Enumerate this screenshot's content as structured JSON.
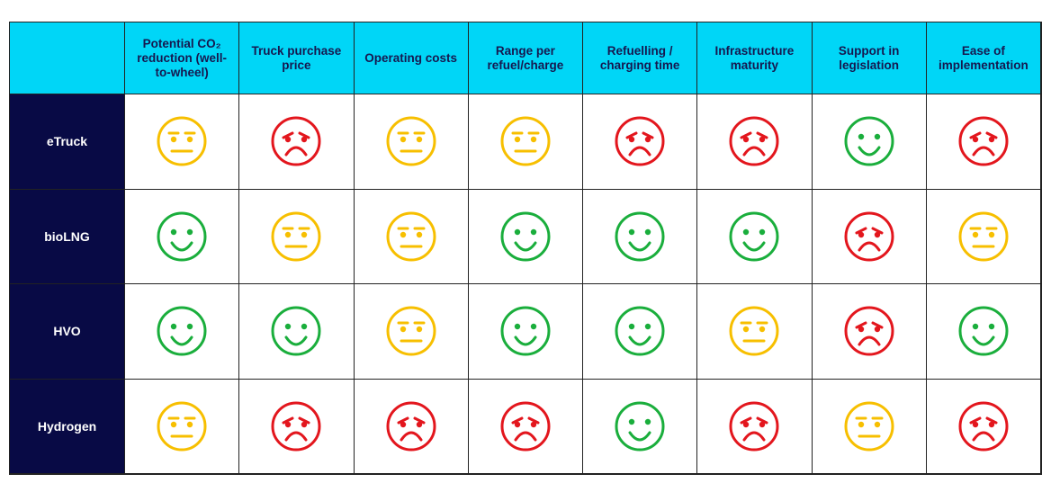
{
  "table": {
    "columns": [
      "Potential CO₂ reduction (well-to-wheel)",
      "Truck purchase price",
      "Operating costs",
      "Range per refuel/charge",
      "Refuelling / charging time",
      "Infrastructure maturity",
      "Support in legislation",
      "Ease of implementation"
    ],
    "rows": [
      {
        "label": "eTruck",
        "ratings": [
          0,
          -1,
          0,
          0,
          -1,
          -1,
          1,
          -1
        ]
      },
      {
        "label": "bioLNG",
        "ratings": [
          1,
          0,
          0,
          1,
          1,
          1,
          -1,
          0
        ]
      },
      {
        "label": "HVO",
        "ratings": [
          1,
          1,
          0,
          1,
          1,
          0,
          -1,
          1
        ]
      },
      {
        "label": "Hydrogen",
        "ratings": [
          0,
          -1,
          -1,
          -1,
          1,
          -1,
          0,
          -1
        ]
      }
    ],
    "colors": [
      "#e3161d",
      "#f7bf00",
      "#1aae3c"
    ]
  }
}
